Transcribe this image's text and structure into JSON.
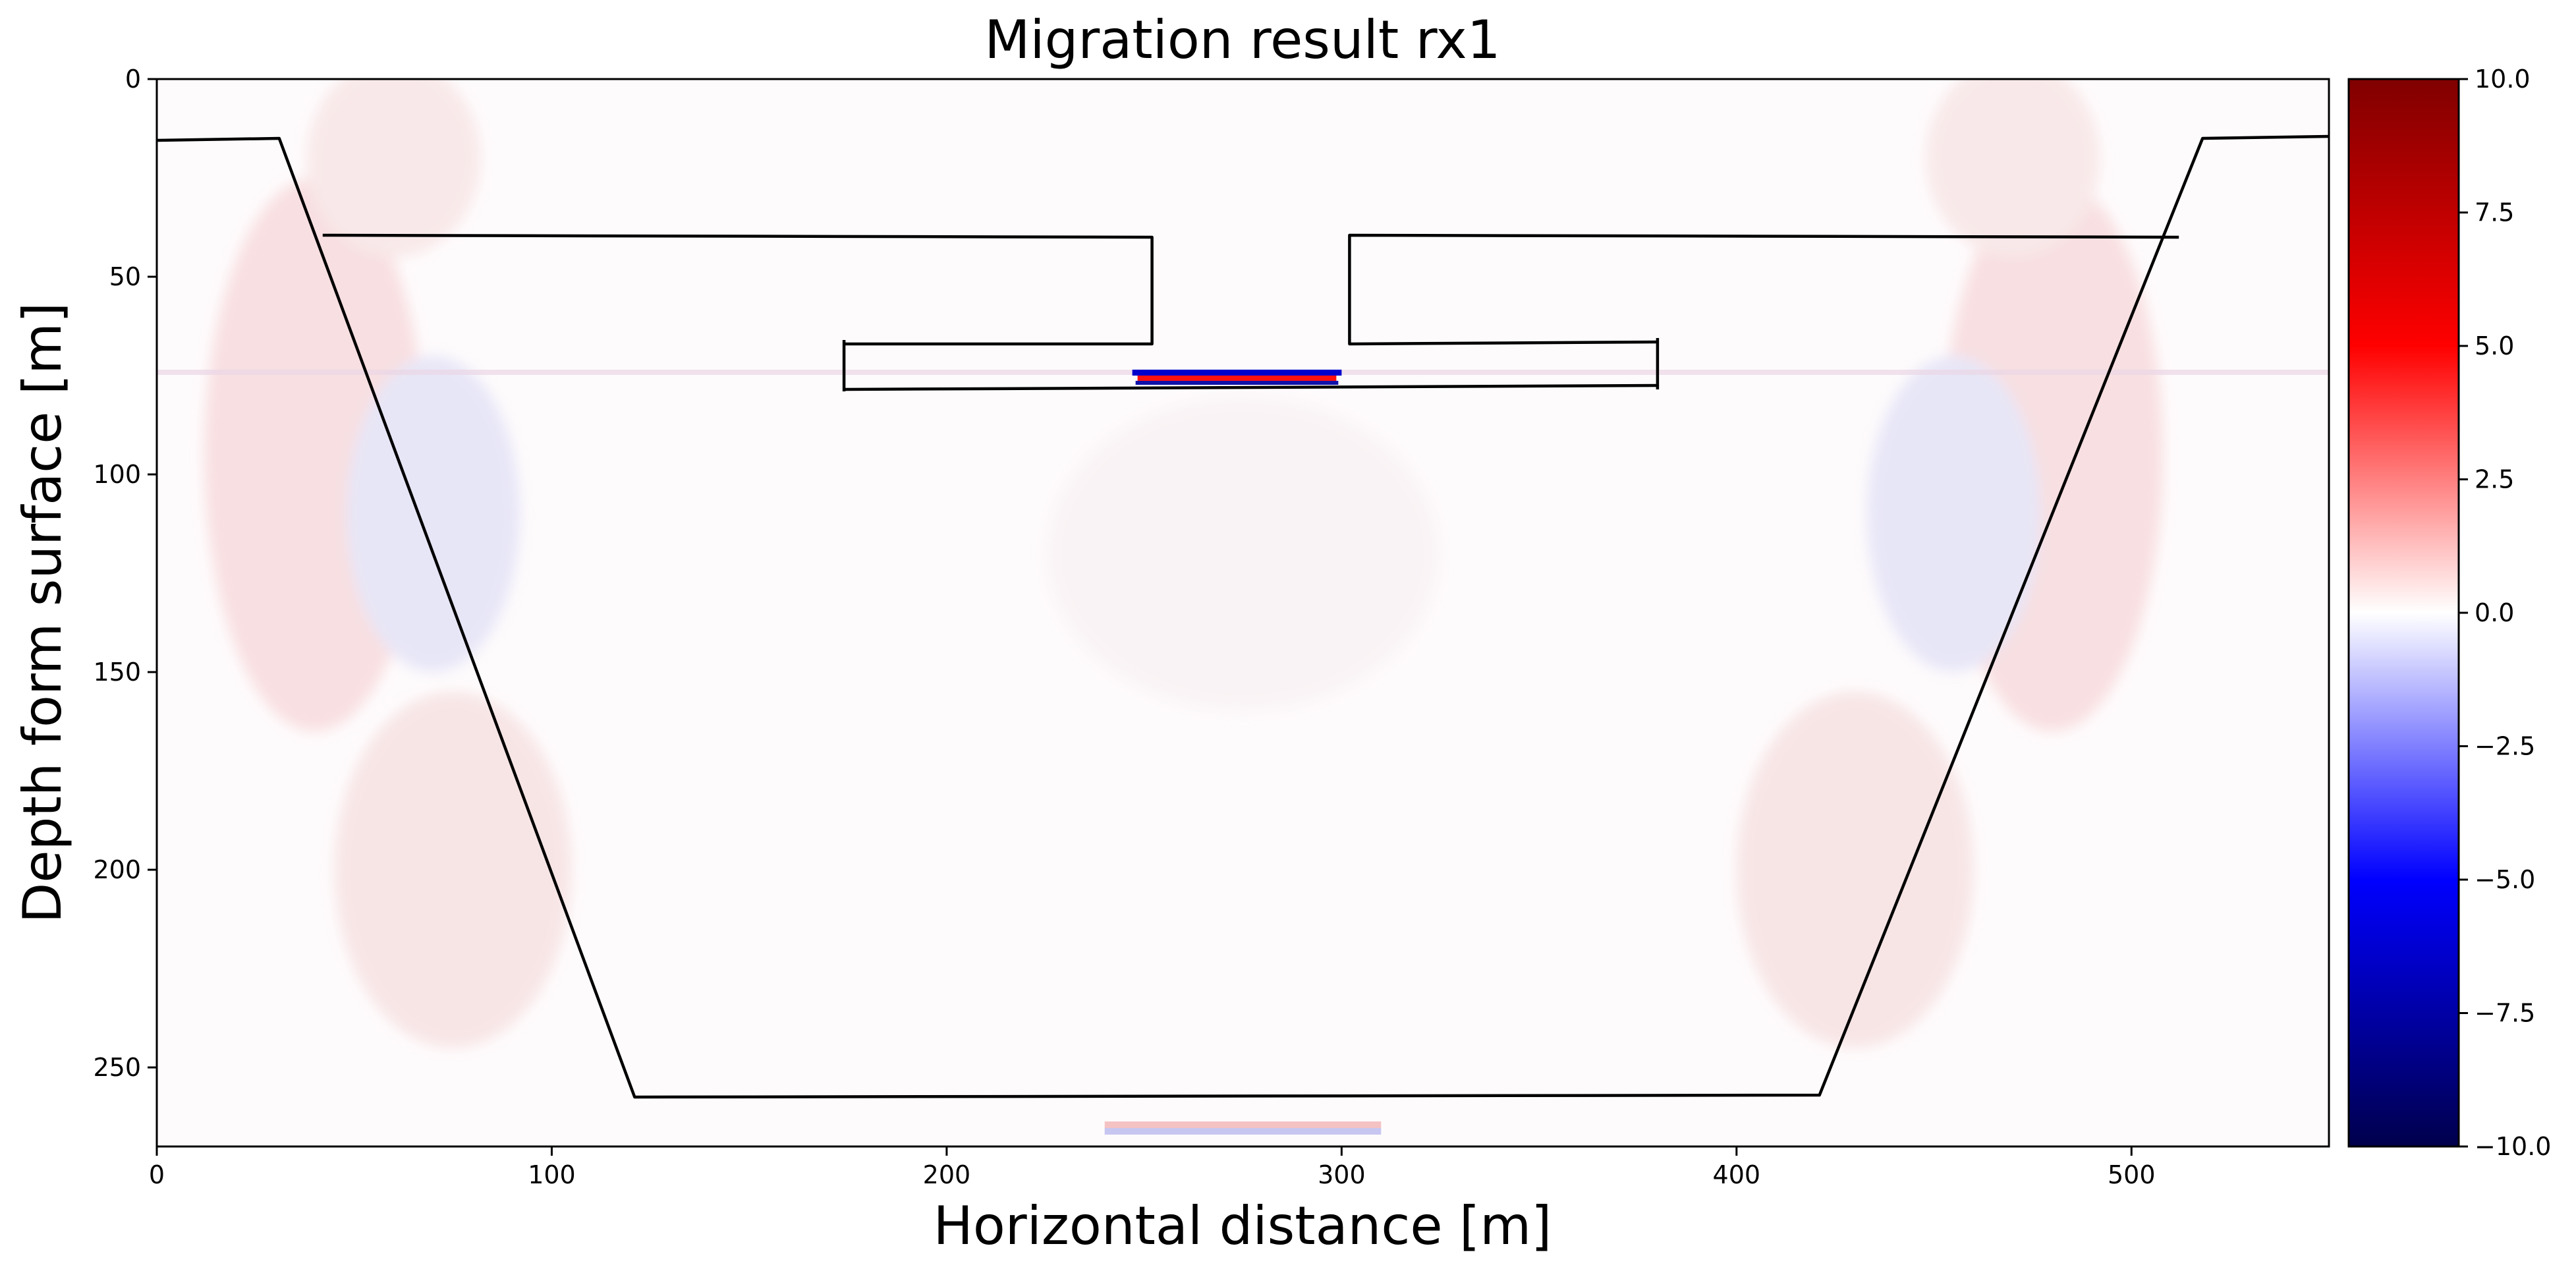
{
  "chart_data": {
    "type": "heatmap",
    "title": "Migration result rx1",
    "xlabel": "Horizontal distance [m]",
    "ylabel": "Depth form surface [m]",
    "xlim": [
      0,
      550
    ],
    "ylim": [
      270,
      0
    ],
    "x_ticks": [
      0,
      100,
      200,
      300,
      400,
      500
    ],
    "y_ticks": [
      0,
      50,
      100,
      150,
      200,
      250
    ],
    "colorbar": {
      "colormap": "seismic",
      "vmin": -10.0,
      "vmax": 10.0,
      "ticks": [
        "10.0",
        "7.5",
        "5.0",
        "2.5",
        "0.0",
        "−2.5",
        "−5.0",
        "−7.5",
        "−10.0"
      ],
      "tick_values": [
        10,
        7.5,
        5,
        2.5,
        0,
        -2.5,
        -5,
        -7.5,
        -10
      ],
      "colors": [
        "#00004c",
        "#0000ff",
        "#ffffff",
        "#ff0000",
        "#800000"
      ]
    },
    "outline_polylines": [
      {
        "name": "outer-boundary",
        "points": [
          [
            0,
            15.5
          ],
          [
            31,
            15
          ],
          [
            121,
            257.5
          ],
          [
            421,
            257
          ],
          [
            518,
            15
          ],
          [
            550,
            14.5
          ]
        ]
      },
      {
        "name": "left-step",
        "points": [
          [
            42,
            39.5
          ],
          [
            252,
            40
          ],
          [
            252,
            67
          ],
          [
            174,
            67
          ]
        ]
      },
      {
        "name": "right-step",
        "points": [
          [
            512,
            40
          ],
          [
            302,
            39.5
          ],
          [
            302,
            67
          ],
          [
            380,
            66.5
          ]
        ]
      },
      {
        "name": "lower-bar",
        "points": [
          [
            174,
            78.5
          ],
          [
            380,
            77.5
          ]
        ]
      },
      {
        "name": "left-bar-edge",
        "points": [
          [
            174,
            66
          ],
          [
            174,
            79
          ]
        ]
      },
      {
        "name": "right-bar-edge",
        "points": [
          [
            380,
            65.5
          ],
          [
            380,
            78.5
          ]
        ]
      }
    ],
    "anomalies": [
      {
        "name": "strong-reflector",
        "x_range": [
          247,
          300
        ],
        "depth": 76.5,
        "peak": 10,
        "trough": -10
      },
      {
        "name": "bottom-reflection",
        "x_range": [
          240,
          310
        ],
        "depth": 266,
        "peak": 3,
        "trough": -3
      }
    ]
  }
}
